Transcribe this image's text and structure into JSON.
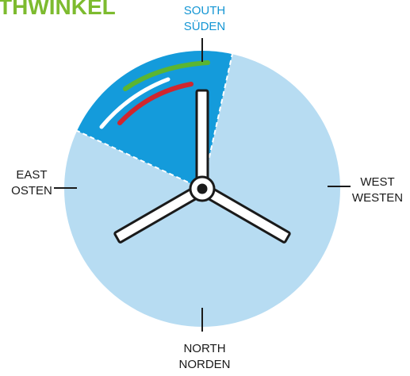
{
  "brand": {
    "text": "THWINKEL",
    "color": "#7dbb2f"
  },
  "compass": {
    "south": {
      "line1": "SOUTH",
      "line2": "SÜDEN",
      "color": "#1596d4"
    },
    "east": {
      "line1": "EAST",
      "line2": "OSTEN"
    },
    "west": {
      "line1": "WEST",
      "line2": "WESTEN"
    },
    "north": {
      "line1": "NORTH",
      "line2": "NORDEN"
    }
  },
  "colors": {
    "disc_fill": "#b7dcf2",
    "sector_fill": "#149bdb",
    "arc_green": "#5bb531",
    "arc_white": "#ffffff",
    "arc_red": "#d0262e",
    "rotor_stroke": "#1a1a1a",
    "rotor_fill": "#ffffff"
  }
}
